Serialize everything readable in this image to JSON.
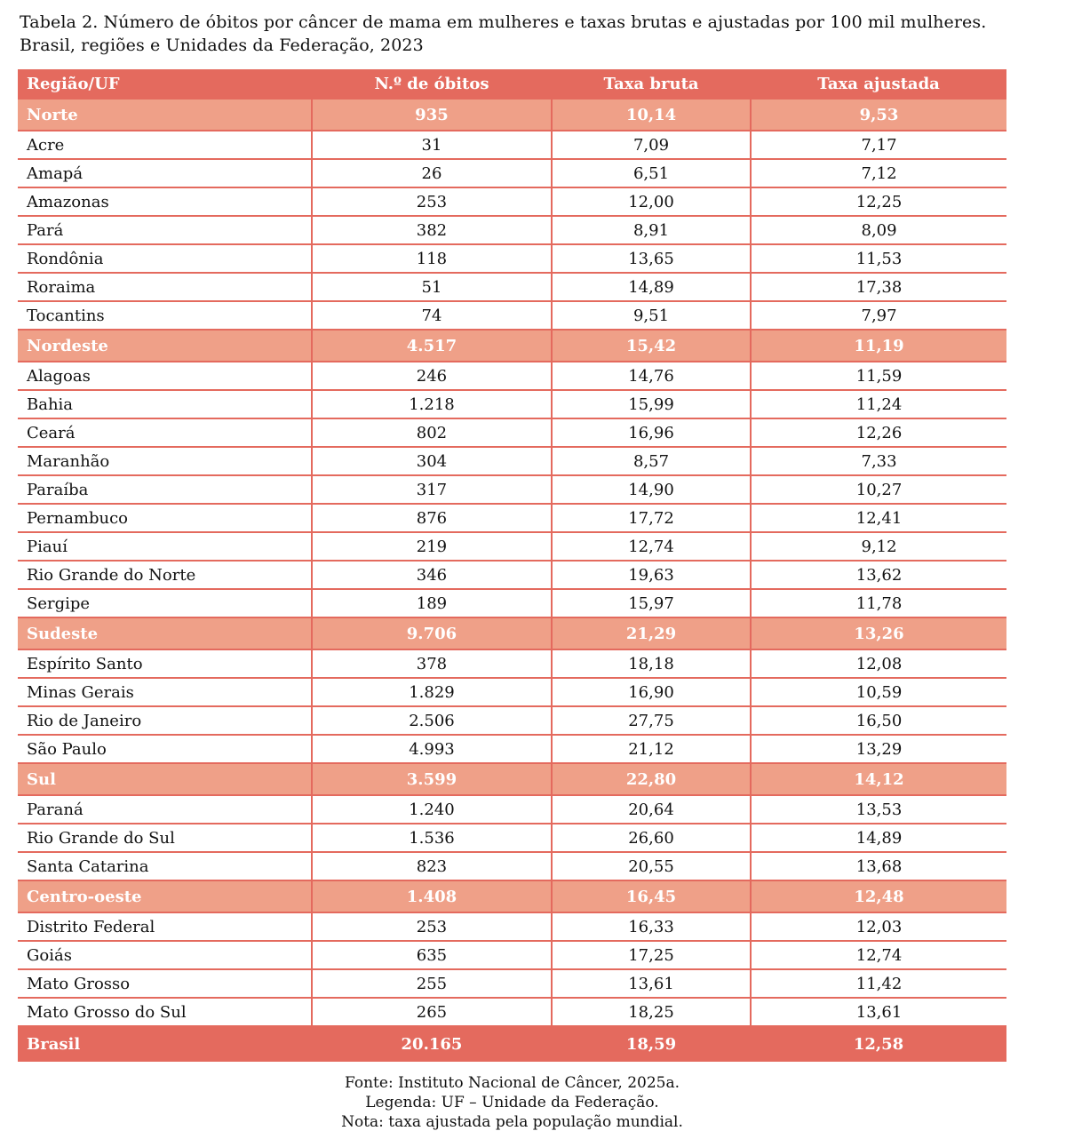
{
  "title": [
    "Tabela 2. Número de óbitos por câncer de mama em mulheres e taxas brutas e ajustadas por 100 mil mulheres.",
    "Brasil, regiões e Unidades da Federação, 2023"
  ],
  "colors": {
    "header": "#e46a5e",
    "region_row": "#efa088"
  },
  "columns": [
    "Região/UF",
    "N.º de óbitos",
    "Taxa bruta",
    "Taxa ajustada"
  ],
  "rows": [
    {
      "type": "region",
      "cells": [
        "Norte",
        "935",
        "10,14",
        "9,53"
      ]
    },
    {
      "type": "uf",
      "cells": [
        "Acre",
        "31",
        "7,09",
        "7,17"
      ]
    },
    {
      "type": "uf",
      "cells": [
        "Amapá",
        "26",
        "6,51",
        "7,12"
      ]
    },
    {
      "type": "uf",
      "cells": [
        "Amazonas",
        "253",
        "12,00",
        "12,25"
      ]
    },
    {
      "type": "uf",
      "cells": [
        "Pará",
        "382",
        "8,91",
        "8,09"
      ]
    },
    {
      "type": "uf",
      "cells": [
        "Rondônia",
        "118",
        "13,65",
        "11,53"
      ]
    },
    {
      "type": "uf",
      "cells": [
        "Roraima",
        "51",
        "14,89",
        "17,38"
      ]
    },
    {
      "type": "uf",
      "cells": [
        "Tocantins",
        "74",
        "9,51",
        "7,97"
      ]
    },
    {
      "type": "region",
      "cells": [
        "Nordeste",
        "4.517",
        "15,42",
        "11,19"
      ]
    },
    {
      "type": "uf",
      "cells": [
        "Alagoas",
        "246",
        "14,76",
        "11,59"
      ]
    },
    {
      "type": "uf",
      "cells": [
        "Bahia",
        "1.218",
        "15,99",
        "11,24"
      ]
    },
    {
      "type": "uf",
      "cells": [
        "Ceará",
        "802",
        "16,96",
        "12,26"
      ]
    },
    {
      "type": "uf",
      "cells": [
        "Maranhão",
        "304",
        "8,57",
        "7,33"
      ]
    },
    {
      "type": "uf",
      "cells": [
        "Paraíba",
        "317",
        "14,90",
        "10,27"
      ]
    },
    {
      "type": "uf",
      "cells": [
        "Pernambuco",
        "876",
        "17,72",
        "12,41"
      ]
    },
    {
      "type": "uf",
      "cells": [
        "Piauí",
        "219",
        "12,74",
        "9,12"
      ]
    },
    {
      "type": "uf",
      "cells": [
        "Rio Grande do Norte",
        "346",
        "19,63",
        "13,62"
      ]
    },
    {
      "type": "uf",
      "cells": [
        "Sergipe",
        "189",
        "15,97",
        "11,78"
      ]
    },
    {
      "type": "region",
      "cells": [
        "Sudeste",
        "9.706",
        "21,29",
        "13,26"
      ]
    },
    {
      "type": "uf",
      "cells": [
        "Espírito Santo",
        "378",
        "18,18",
        "12,08"
      ]
    },
    {
      "type": "uf",
      "cells": [
        "Minas Gerais",
        "1.829",
        "16,90",
        "10,59"
      ]
    },
    {
      "type": "uf",
      "cells": [
        "Rio de Janeiro",
        "2.506",
        "27,75",
        "16,50"
      ]
    },
    {
      "type": "uf",
      "cells": [
        "São Paulo",
        "4.993",
        "21,12",
        "13,29"
      ]
    },
    {
      "type": "region",
      "cells": [
        "Sul",
        "3.599",
        "22,80",
        "14,12"
      ]
    },
    {
      "type": "uf",
      "cells": [
        "Paraná",
        "1.240",
        "20,64",
        "13,53"
      ]
    },
    {
      "type": "uf",
      "cells": [
        "Rio Grande do Sul",
        "1.536",
        "26,60",
        "14,89"
      ]
    },
    {
      "type": "uf",
      "cells": [
        "Santa Catarina",
        "823",
        "20,55",
        "13,68"
      ]
    },
    {
      "type": "region",
      "cells": [
        "Centro-oeste",
        "1.408",
        "16,45",
        "12,48"
      ]
    },
    {
      "type": "uf",
      "cells": [
        "Distrito Federal",
        "253",
        "16,33",
        "12,03"
      ]
    },
    {
      "type": "uf",
      "cells": [
        "Goiás",
        "635",
        "17,25",
        "12,74"
      ]
    },
    {
      "type": "uf",
      "cells": [
        "Mato Grosso",
        "255",
        "13,61",
        "11,42"
      ]
    },
    {
      "type": "uf",
      "cells": [
        "Mato Grosso do Sul",
        "265",
        "18,25",
        "13,61"
      ]
    },
    {
      "type": "total",
      "cells": [
        "Brasil",
        "20.165",
        "18,59",
        "12,58"
      ]
    }
  ],
  "notes": [
    "Fonte: Instituto Nacional de Câncer, 2025a.",
    "Legenda: UF – Unidade da Federação.",
    "Nota: taxa ajustada pela população mundial."
  ]
}
